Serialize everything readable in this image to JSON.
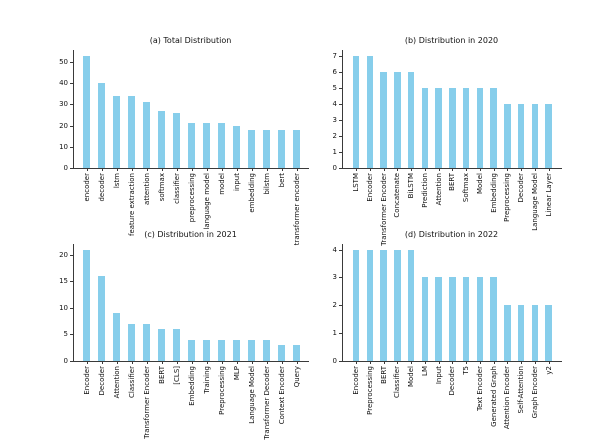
{
  "figure": {
    "background_color": "#ffffff",
    "bar_color": "#87CEEB",
    "axis_color": "#3a3a3a",
    "text_color": "#111111"
  },
  "chart_data": [
    {
      "type": "bar",
      "title": "(a) Total Distribution",
      "categories": [
        "encoder",
        "decoder",
        "lstm",
        "feature extraction",
        "attention",
        "softmax",
        "classifier",
        "preprocessing",
        "language model",
        "model",
        "input",
        "embedding",
        "bilstm",
        "bert",
        "transformer encoder"
      ],
      "values": [
        53,
        40,
        34,
        34,
        31,
        27,
        26,
        21,
        21,
        21,
        20,
        18,
        18,
        18,
        18
      ],
      "xlabel": "",
      "ylabel": "",
      "yticks": [
        0,
        10,
        20,
        30,
        40,
        50
      ],
      "ylim": [
        0,
        55.65
      ],
      "grid": false,
      "legend": "none",
      "xtick_rotation": 90
    },
    {
      "type": "bar",
      "title": "(b) Distribution in 2020",
      "categories": [
        "LSTM",
        "Encoder",
        "Transformer Encoder",
        "Concatenate",
        "BiLSTM",
        "Prediction",
        "Attention",
        "BERT",
        "Softmax",
        "Model",
        "Embedding",
        "Preprocessing",
        "Decoder",
        "Language Model",
        "Linear Layer"
      ],
      "values": [
        7,
        7,
        6,
        6,
        6,
        5,
        5,
        5,
        5,
        5,
        5,
        4,
        4,
        4,
        4
      ],
      "xlabel": "",
      "ylabel": "",
      "yticks": [
        0,
        1,
        2,
        3,
        4,
        5,
        6,
        7
      ],
      "ylim": [
        0,
        7.35
      ],
      "grid": false,
      "legend": "none",
      "xtick_rotation": 90
    },
    {
      "type": "bar",
      "title": "(c) Distribution in 2021",
      "categories": [
        "Encoder",
        "Decoder",
        "Attention",
        "Classifier",
        "Transformer Encoder",
        "BERT",
        "[CLS]",
        "Embedding",
        "Training",
        "Preprocessing",
        "MLP",
        "Language Model",
        "Transformer Decoder",
        "Context Encoder",
        "Query"
      ],
      "values": [
        21,
        16,
        9,
        7,
        7,
        6,
        6,
        4,
        4,
        4,
        4,
        4,
        4,
        3,
        3
      ],
      "xlabel": "",
      "ylabel": "",
      "yticks": [
        0,
        5,
        10,
        15,
        20
      ],
      "ylim": [
        0,
        22.05
      ],
      "grid": false,
      "legend": "none",
      "xtick_rotation": 90
    },
    {
      "type": "bar",
      "title": "(d) Distribution in 2022",
      "categories": [
        "Encoder",
        "Preprocessing",
        "BERT",
        "Classifier",
        "Model",
        "LM",
        "Input",
        "Decoder",
        "T5",
        "Text Encoder",
        "Generated Graph",
        "Attention Encoder",
        "Self-Attention",
        "Graph Encoder",
        "y2"
      ],
      "values": [
        4,
        4,
        4,
        4,
        4,
        3,
        3,
        3,
        3,
        3,
        3,
        2,
        2,
        2,
        2
      ],
      "xlabel": "",
      "ylabel": "",
      "yticks": [
        0,
        1,
        2,
        3,
        4
      ],
      "ylim": [
        0,
        4.2
      ],
      "grid": false,
      "legend": "none",
      "xtick_rotation": 90
    }
  ]
}
